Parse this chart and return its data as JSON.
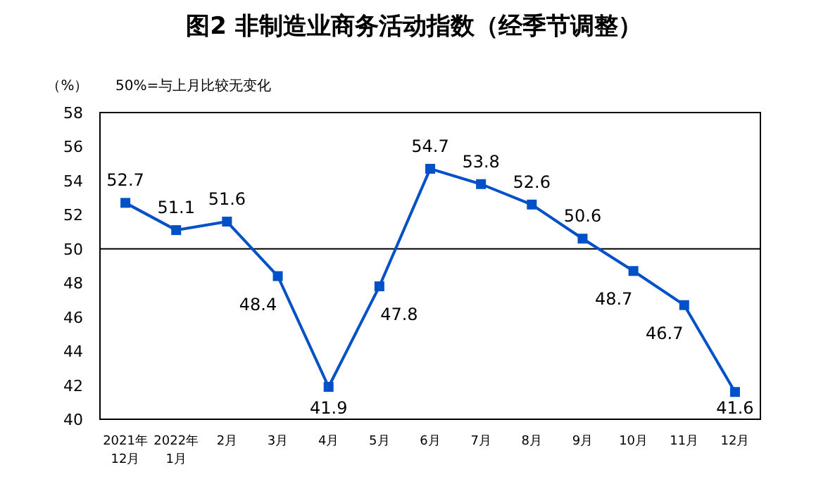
{
  "chart_data": {
    "type": "line",
    "title": "图2  非制造业商务活动指数（经季节调整）",
    "ylabel": "（%）",
    "annotations": [
      "50%=与上月比较无变化"
    ],
    "categories": [
      "2021年\n12月",
      "2022年\n1月",
      "2月",
      "3月",
      "4月",
      "5月",
      "6月",
      "7月",
      "8月",
      "9月",
      "10月",
      "11月",
      "12月"
    ],
    "series": [
      {
        "color": "#0050c8",
        "values": [
          52.7,
          51.1,
          51.6,
          48.4,
          41.9,
          47.8,
          54.7,
          53.8,
          52.6,
          50.6,
          48.7,
          46.7,
          41.6
        ]
      }
    ],
    "ylim": [
      40,
      58
    ],
    "yticks": [
      40,
      42,
      44,
      46,
      48,
      50,
      52,
      54,
      56,
      58
    ],
    "ref_lines": [
      {
        "axis": "y",
        "value": 50,
        "color": "#000000"
      }
    ],
    "data_labels": true,
    "marker": "square",
    "grid": false
  }
}
